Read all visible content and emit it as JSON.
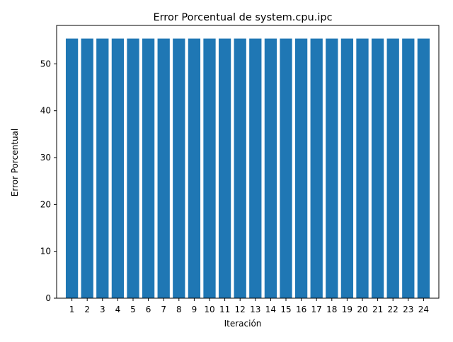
{
  "chart_data": {
    "type": "bar",
    "title": "Error Porcentual de system.cpu.ipc",
    "xlabel": "Iteración",
    "ylabel": "Error Porcentual",
    "categories": [
      "1",
      "2",
      "3",
      "4",
      "5",
      "6",
      "7",
      "8",
      "9",
      "10",
      "11",
      "12",
      "13",
      "14",
      "15",
      "16",
      "17",
      "18",
      "19",
      "20",
      "21",
      "22",
      "23",
      "24"
    ],
    "values": [
      55.4,
      55.4,
      55.4,
      55.4,
      55.4,
      55.4,
      55.4,
      55.4,
      55.4,
      55.4,
      55.4,
      55.4,
      55.4,
      55.4,
      55.4,
      55.4,
      55.4,
      55.4,
      55.4,
      55.4,
      55.4,
      55.4,
      55.4,
      55.4
    ],
    "yticks": [
      0,
      10,
      20,
      30,
      40,
      50
    ],
    "ylim": [
      0,
      58.2
    ],
    "grid": false,
    "bar_color": "#1f77b4"
  }
}
